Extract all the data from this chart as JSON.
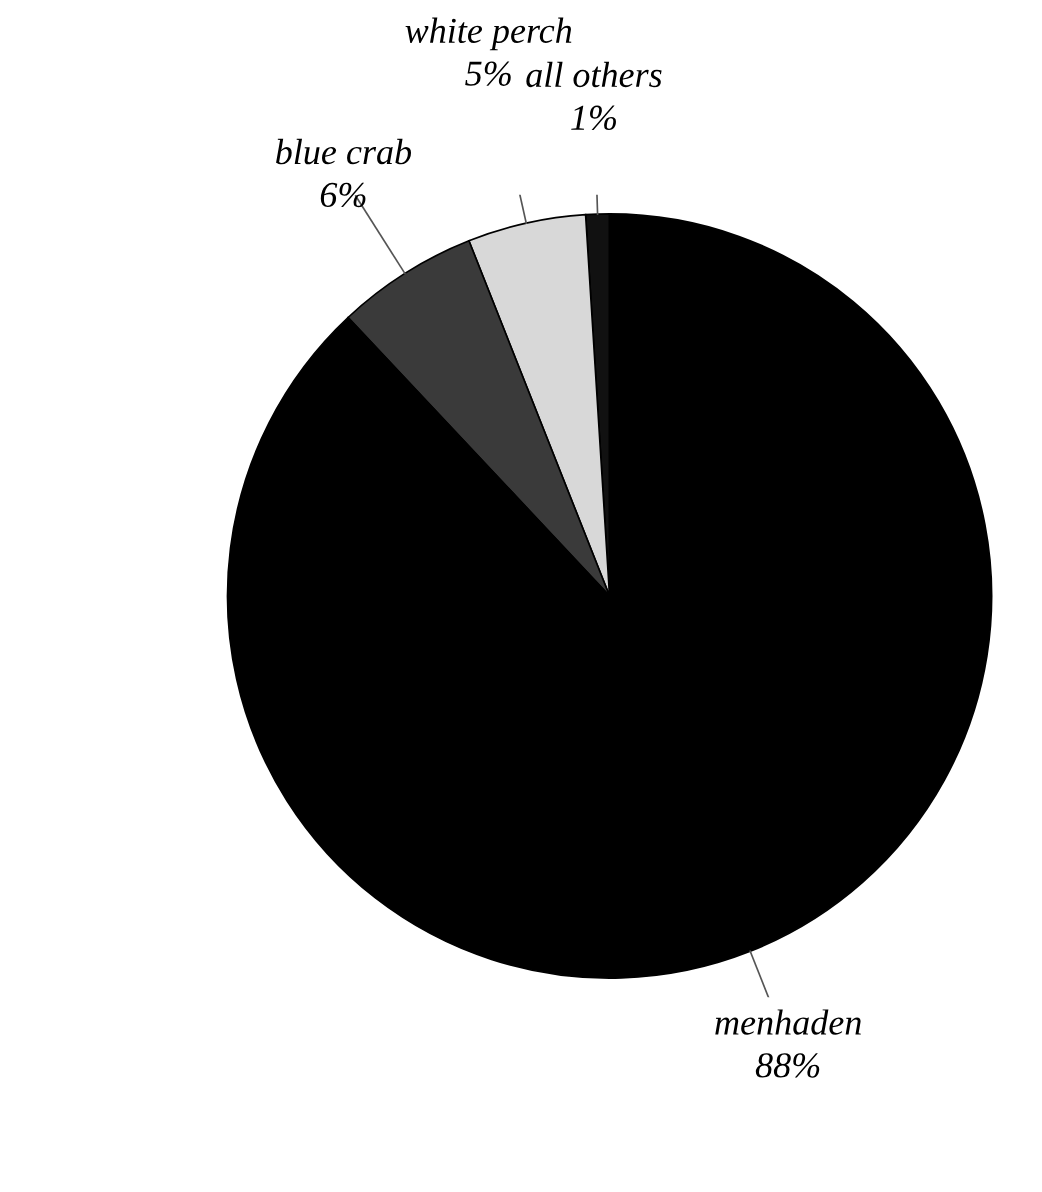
{
  "chart_data": {
    "type": "pie",
    "categories": [
      "all others",
      "white perch",
      "blue crab",
      "menhaden"
    ],
    "values": [
      1,
      5,
      6,
      88
    ],
    "value_labels": [
      "1%",
      "5%",
      "6%",
      "88%"
    ],
    "colors": [
      "#111111",
      "#d8d8d8",
      "#3a3a3a",
      "#000000"
    ]
  }
}
